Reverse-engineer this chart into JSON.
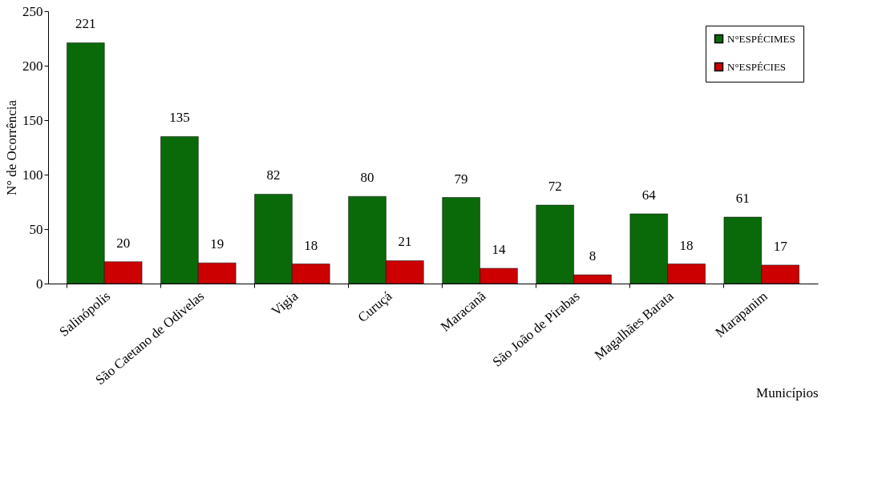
{
  "chart_data": {
    "type": "bar",
    "xlabel": "Municípios",
    "ylabel": "N° de Ocorrência",
    "categories": [
      "Salinópolis",
      "São Caetano de Odivelas",
      "Vigia",
      "Curuçá",
      "Maracanã",
      "São João de Pirabas",
      "Magalhães Barata",
      "Marapanim"
    ],
    "series": [
      {
        "name": "N°ESPÉCIMES",
        "color": "#0a6a0a",
        "values": [
          221,
          135,
          82,
          80,
          79,
          72,
          64,
          61
        ]
      },
      {
        "name": "N°ESPÉCIES",
        "color": "#cc0000",
        "values": [
          20,
          19,
          18,
          21,
          14,
          8,
          18,
          17
        ]
      }
    ],
    "ylim": [
      0,
      250
    ],
    "yticks": [
      0,
      50,
      100,
      150,
      200,
      250
    ],
    "grid": false,
    "legend": "top right",
    "data_labels": true
  }
}
